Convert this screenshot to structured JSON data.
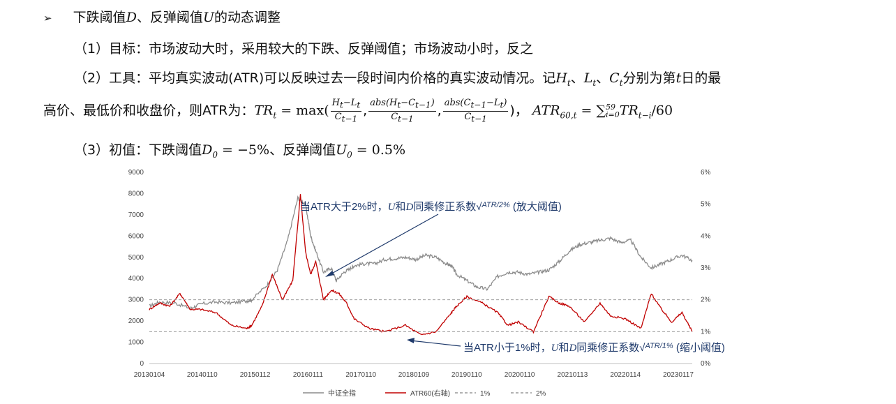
{
  "bullet_marker": "➢",
  "heading": {
    "text_a": "下跌阈值",
    "var_d": "D",
    "text_b": "、反弹阈值",
    "var_u": "U",
    "text_c": "的动态调整"
  },
  "items": [
    {
      "num": "（1）",
      "label": "目标：",
      "body": "市场波动大时，采用较大的下跌、反弹阈值；市场波动小时，反之"
    },
    {
      "num": "（2）",
      "label": "工具：",
      "body_a": "平均真实波动(ATR)可以反映过去一段时间内价格的真实波动情况。记",
      "vars": "H",
      "body_b": "分别为第",
      "var_t": "t",
      "body_c": "日的最"
    },
    {
      "num": "（3）",
      "label": "初值：",
      "body_a": "下跌阈值",
      "d0_value": "= −5%",
      "body_b": "、反弹阈值",
      "u0_value": "= 0.5%"
    }
  ],
  "formula_line": {
    "lead": "高价、最低价和收盘价，则ATR为：",
    "tr_lhs": "TR",
    "sub_t": "t",
    "eq": "= max(",
    "frac1_num": "H",
    "frac2_num": "abs(H",
    "frac3_num": "abs(C",
    "frac_den": "C",
    "close": ")，",
    "atr_lhs": "ATR",
    "atr_sub": "60,t",
    "atr_rhs": "= ∑",
    "sum_top": "59",
    "sum_bottom": "i=0",
    "sum_body": "TR",
    "sum_sub": "t−i",
    "div": "/60"
  },
  "chart_data": {
    "type": "line",
    "x_ticks": [
      "20130104",
      "20140110",
      "20150112",
      "20160111",
      "20170110",
      "20180109",
      "20190110",
      "20200110",
      "20210113",
      "20220114",
      "20230117"
    ],
    "y_left": {
      "min": 0,
      "max": 9000,
      "ticks": [
        "0",
        "1000",
        "2000",
        "3000",
        "4000",
        "5000",
        "6000",
        "7000",
        "8000",
        "9000"
      ]
    },
    "y_right": {
      "min": 0,
      "max": 6,
      "ticks": [
        "0%",
        "1%",
        "2%",
        "3%",
        "4%",
        "5%",
        "6%"
      ]
    },
    "series": [
      {
        "name": "中证全指",
        "axis": "left",
        "color": "#8c8c8c",
        "t": [
          0,
          0.2,
          0.5,
          0.8,
          1.0,
          1.3,
          1.6,
          1.9,
          2.0,
          2.3,
          2.5,
          2.7,
          2.9,
          3.05,
          3.15,
          3.25,
          3.4,
          3.55,
          3.65,
          3.8,
          3.95,
          4.0,
          4.2,
          4.4,
          4.6,
          4.8,
          5.0,
          5.2,
          5.4,
          5.6,
          5.8,
          5.9,
          6.0,
          6.2,
          6.4,
          6.6,
          6.8,
          7.0,
          7.2,
          7.4,
          7.6,
          7.8,
          8.0,
          8.2,
          8.4,
          8.6,
          8.8,
          9.0,
          9.2,
          9.4,
          9.6,
          9.8,
          10.0,
          10.2,
          10.4,
          10.6
        ],
        "v": [
          2700,
          2900,
          2850,
          2600,
          2800,
          2900,
          2850,
          2950,
          3000,
          3700,
          4400,
          5800,
          7800,
          7500,
          6000,
          5300,
          4300,
          4500,
          3900,
          4300,
          4500,
          4600,
          4700,
          4700,
          4900,
          4950,
          5000,
          4900,
          5100,
          5000,
          4700,
          4600,
          4200,
          3900,
          3600,
          3500,
          4100,
          4300,
          4300,
          4200,
          4300,
          4400,
          4800,
          5300,
          5600,
          5700,
          5800,
          5900,
          5700,
          5800,
          5000,
          4500,
          4700,
          4900,
          5100,
          4850
        ]
      },
      {
        "name": "ATR60(右轴)",
        "axis": "right",
        "color": "#c00000",
        "t": [
          0,
          0.2,
          0.4,
          0.6,
          0.8,
          1.0,
          1.3,
          1.6,
          1.9,
          2.0,
          2.2,
          2.4,
          2.6,
          2.8,
          2.95,
          3.05,
          3.15,
          3.25,
          3.4,
          3.55,
          3.7,
          3.85,
          4.0,
          4.3,
          4.6,
          5.0,
          5.3,
          5.6,
          5.9,
          6.0,
          6.2,
          6.5,
          6.8,
          7.0,
          7.2,
          7.5,
          7.8,
          8.0,
          8.2,
          8.5,
          8.8,
          9.0,
          9.3,
          9.6,
          9.8,
          10.0,
          10.2,
          10.4,
          10.6
        ],
        "v": [
          1.7,
          1.9,
          1.8,
          2.2,
          1.7,
          1.7,
          1.6,
          1.2,
          1.1,
          1.2,
          1.8,
          2.8,
          2.0,
          2.6,
          5.3,
          3.5,
          2.8,
          3.2,
          2.0,
          2.3,
          2.2,
          1.9,
          1.4,
          1.1,
          1.0,
          1.2,
          0.9,
          1.0,
          1.6,
          1.8,
          2.1,
          1.9,
          1.6,
          1.2,
          1.3,
          1.0,
          2.1,
          1.9,
          1.8,
          1.3,
          1.9,
          1.5,
          1.4,
          1.1,
          2.2,
          1.7,
          1.3,
          1.6,
          1.0
        ]
      },
      {
        "name": "1%",
        "axis": "right",
        "color": "#999999",
        "dashed": true,
        "value": 1
      },
      {
        "name": "2%",
        "axis": "right",
        "color": "#999999",
        "dashed": true,
        "value": 2
      }
    ],
    "annotations": [
      {
        "text_a": "当ATR大于2%时，",
        "vars": "U",
        "mid": "和",
        "var2": "D",
        "text_b": "同乘修正系数",
        "sqrt": "ATR/2%",
        "text_c": "(放大阈值)"
      },
      {
        "text_a": "当ATR小于1%时，",
        "vars": "U",
        "mid": "和",
        "var2": "D",
        "text_b": "同乘修正系数",
        "sqrt": "ATR/1%",
        "text_c": "(缩小阈值)"
      }
    ],
    "legend_position": "bottom"
  }
}
